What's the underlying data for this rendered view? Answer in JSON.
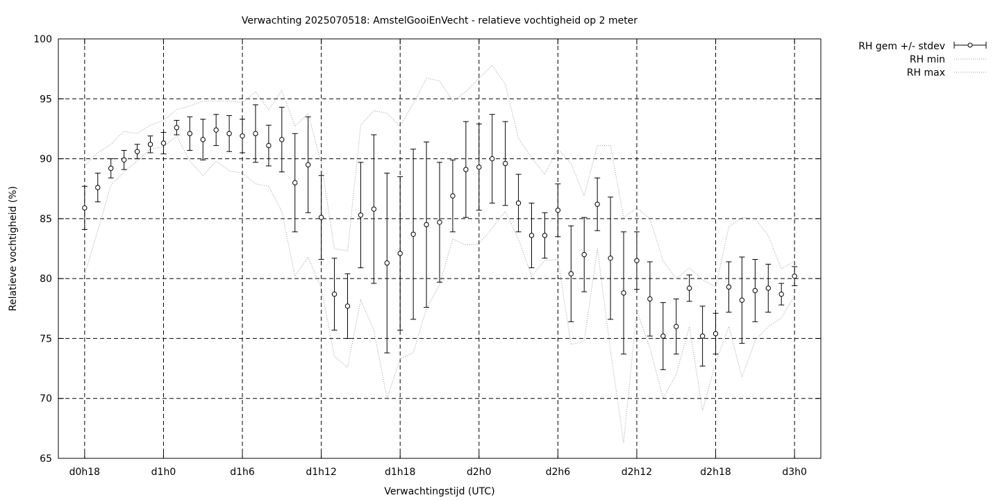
{
  "chart_data": {
    "type": "line",
    "title": "Verwachting 2025070518: AmstelGooiEnVecht - relatieve vochtigheid op 2 meter",
    "xlabel": "Verwachtingstijd (UTC)",
    "ylabel": "Relatieve vochtigheid (%)",
    "ylim": [
      65,
      100
    ],
    "xlim": [
      -2,
      56
    ],
    "yticks": [
      65,
      70,
      75,
      80,
      85,
      90,
      95,
      100
    ],
    "xticks": [
      {
        "x": 0,
        "label": "d0h18"
      },
      {
        "x": 6,
        "label": "d1h0"
      },
      {
        "x": 12,
        "label": "d1h6"
      },
      {
        "x": 18,
        "label": "d1h12"
      },
      {
        "x": 24,
        "label": "d1h18"
      },
      {
        "x": 30,
        "label": "d2h0"
      },
      {
        "x": 36,
        "label": "d2h6"
      },
      {
        "x": 42,
        "label": "d2h12"
      },
      {
        "x": 48,
        "label": "d2h18"
      },
      {
        "x": 54,
        "label": "d3h0"
      }
    ],
    "grid": true,
    "legend_position": "outside-top-right",
    "series": [
      {
        "name": "RH gem +/- stdev",
        "style": "errorbars",
        "x": [
          0,
          1,
          2,
          3,
          4,
          5,
          6,
          7,
          8,
          9,
          10,
          11,
          12,
          13,
          14,
          15,
          16,
          17,
          18,
          19,
          20,
          21,
          22,
          23,
          24,
          25,
          26,
          27,
          28,
          29,
          30,
          31,
          32,
          33,
          34,
          35,
          36,
          37,
          38,
          39,
          40,
          41,
          42,
          43,
          44,
          45,
          46,
          47,
          48,
          49,
          50,
          51,
          52,
          53,
          54
        ],
        "mean": [
          85.9,
          87.6,
          89.2,
          89.9,
          90.6,
          91.2,
          91.3,
          92.6,
          92.1,
          91.6,
          92.4,
          92.1,
          91.9,
          92.1,
          91.1,
          91.6,
          88.0,
          89.5,
          85.1,
          78.7,
          77.7,
          85.3,
          85.8,
          81.3,
          82.1,
          83.7,
          84.5,
          84.7,
          86.9,
          89.1,
          89.3,
          90.0,
          89.6,
          86.3,
          83.6,
          83.6,
          85.7,
          80.4,
          82.0,
          86.2,
          81.7,
          78.8,
          81.5,
          78.3,
          75.2,
          76.0,
          79.2,
          75.2,
          75.4,
          79.3,
          78.2,
          79.0,
          79.2,
          78.7,
          80.2
        ],
        "stdev": [
          1.8,
          1.2,
          0.8,
          0.8,
          0.6,
          0.7,
          0.9,
          0.6,
          1.4,
          1.7,
          1.3,
          1.5,
          1.4,
          2.4,
          1.7,
          2.7,
          4.1,
          4.0,
          3.5,
          3.0,
          2.7,
          4.4,
          6.2,
          7.5,
          6.4,
          7.1,
          6.9,
          5.0,
          3.0,
          4.0,
          3.6,
          3.7,
          3.5,
          2.4,
          2.7,
          1.9,
          2.2,
          4.0,
          3.1,
          2.2,
          5.1,
          5.1,
          2.4,
          3.1,
          2.8,
          2.3,
          1.1,
          2.5,
          1.7,
          2.1,
          3.6,
          2.6,
          2.0,
          0.9,
          0.8
        ]
      },
      {
        "name": "RH min",
        "style": "dotted",
        "x": [
          0,
          1,
          2,
          3,
          4,
          5,
          6,
          7,
          8,
          9,
          10,
          11,
          12,
          13,
          14,
          15,
          16,
          17,
          18,
          19,
          20,
          21,
          22,
          23,
          24,
          25,
          26,
          27,
          28,
          29,
          30,
          31,
          32,
          33,
          34,
          35,
          36,
          37,
          38,
          39,
          40,
          41,
          42,
          43,
          44,
          45,
          46,
          47,
          48,
          49,
          50,
          51,
          52,
          53,
          54
        ],
        "values": [
          80.3,
          84.0,
          87.8,
          88.9,
          89.8,
          90.8,
          91.0,
          91.9,
          89.8,
          88.6,
          89.8,
          89.0,
          88.8,
          87.9,
          87.7,
          85.6,
          80.2,
          81.8,
          79.2,
          73.5,
          72.6,
          78.2,
          75.7,
          70.0,
          73.3,
          73.8,
          77.5,
          79.5,
          83.3,
          82.8,
          82.9,
          84.2,
          85.6,
          83.3,
          80.2,
          81.5,
          81.6,
          74.5,
          74.8,
          82.5,
          74.0,
          66.3,
          77.3,
          74.2,
          70.0,
          72.0,
          76.0,
          69.0,
          73.0,
          76.0,
          71.8,
          74.8,
          76.0,
          76.7,
          78.6
        ]
      },
      {
        "name": "RH max",
        "style": "dotted",
        "x": [
          0,
          1,
          2,
          3,
          4,
          5,
          6,
          7,
          8,
          9,
          10,
          11,
          12,
          13,
          14,
          15,
          16,
          17,
          18,
          19,
          20,
          21,
          22,
          23,
          24,
          25,
          26,
          27,
          28,
          29,
          30,
          31,
          32,
          33,
          34,
          35,
          36,
          37,
          38,
          39,
          40,
          41,
          42,
          43,
          44,
          45,
          46,
          47,
          48,
          49,
          50,
          51,
          52,
          53,
          54
        ],
        "values": [
          89.4,
          90.5,
          91.2,
          92.3,
          92.1,
          92.8,
          93.2,
          94.1,
          94.4,
          94.8,
          94.8,
          94.8,
          94.7,
          95.6,
          94.1,
          95.7,
          92.7,
          93.8,
          89.6,
          82.5,
          82.3,
          92.8,
          94.0,
          93.8,
          92.7,
          94.6,
          96.7,
          96.5,
          94.8,
          95.6,
          96.7,
          97.8,
          96.2,
          91.7,
          90.1,
          88.7,
          90.8,
          89.6,
          86.9,
          91.1,
          91.1,
          85.1,
          85.9,
          85.0,
          81.5,
          80.0,
          80.9,
          79.9,
          79.3,
          84.3,
          85.1,
          85.0,
          83.6,
          80.8,
          81.5
        ]
      }
    ]
  }
}
